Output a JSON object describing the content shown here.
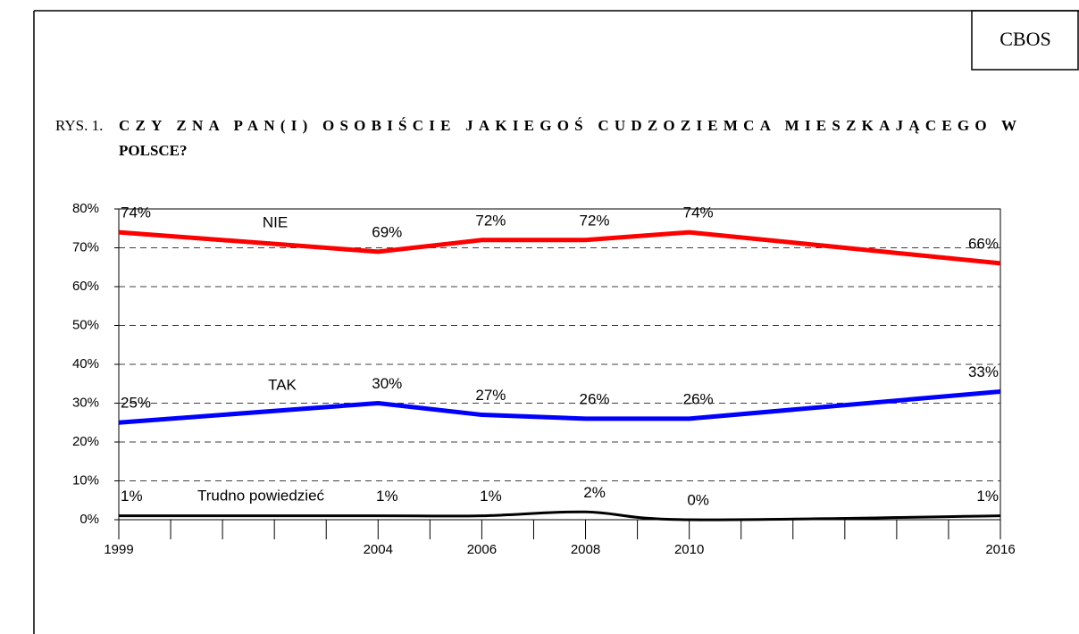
{
  "chart_data": {
    "type": "line",
    "source": "CBOS",
    "title_prefix": "RYS. 1.",
    "title": "CZY ZNA PAN(I) OSOBIŚCIE JAKIEGOŚ CUDZOZIEMCA MIESZKAJĄCEGO W",
    "title_line2": "POLSCE?",
    "x": [
      1999,
      2004,
      2006,
      2008,
      2010,
      2016
    ],
    "xlim": [
      1999,
      2016
    ],
    "xticks": [
      1999,
      2004,
      2006,
      2008,
      2010,
      2016
    ],
    "xminorticks": [
      1999,
      2000,
      2001,
      2002,
      2003,
      2004,
      2005,
      2006,
      2007,
      2008,
      2009,
      2010,
      2011,
      2012,
      2013,
      2014,
      2015,
      2016
    ],
    "ylim": [
      0,
      80
    ],
    "yticks": [
      {
        "value": 0,
        "label": "0%"
      },
      {
        "value": 10,
        "label": "10%"
      },
      {
        "value": 20,
        "label": "20%"
      },
      {
        "value": 30,
        "label": "30%"
      },
      {
        "value": 40,
        "label": "40%"
      },
      {
        "value": 50,
        "label": "50%"
      },
      {
        "value": 60,
        "label": "60%"
      },
      {
        "value": 70,
        "label": "70%"
      },
      {
        "value": 80,
        "label": "80%"
      }
    ],
    "grid": true,
    "series": [
      {
        "name": "NIE",
        "color": "#ff0000",
        "values": [
          74,
          69,
          72,
          72,
          74,
          66
        ],
        "value_labels": [
          "74%",
          "69%",
          "72%",
          "72%",
          "74%",
          "66%"
        ]
      },
      {
        "name": "TAK",
        "color": "#0000ff",
        "values": [
          25,
          30,
          27,
          26,
          26,
          33
        ],
        "value_labels": [
          "25%",
          "30%",
          "27%",
          "26%",
          "26%",
          "33%"
        ]
      },
      {
        "name": "Trudno powiedzieć",
        "color": "#000000",
        "smooth": true,
        "values": [
          1,
          1,
          1,
          2,
          0,
          1
        ],
        "value_labels": [
          "1%",
          "1%",
          "1%",
          "2%",
          "0%",
          "1%"
        ]
      }
    ]
  }
}
